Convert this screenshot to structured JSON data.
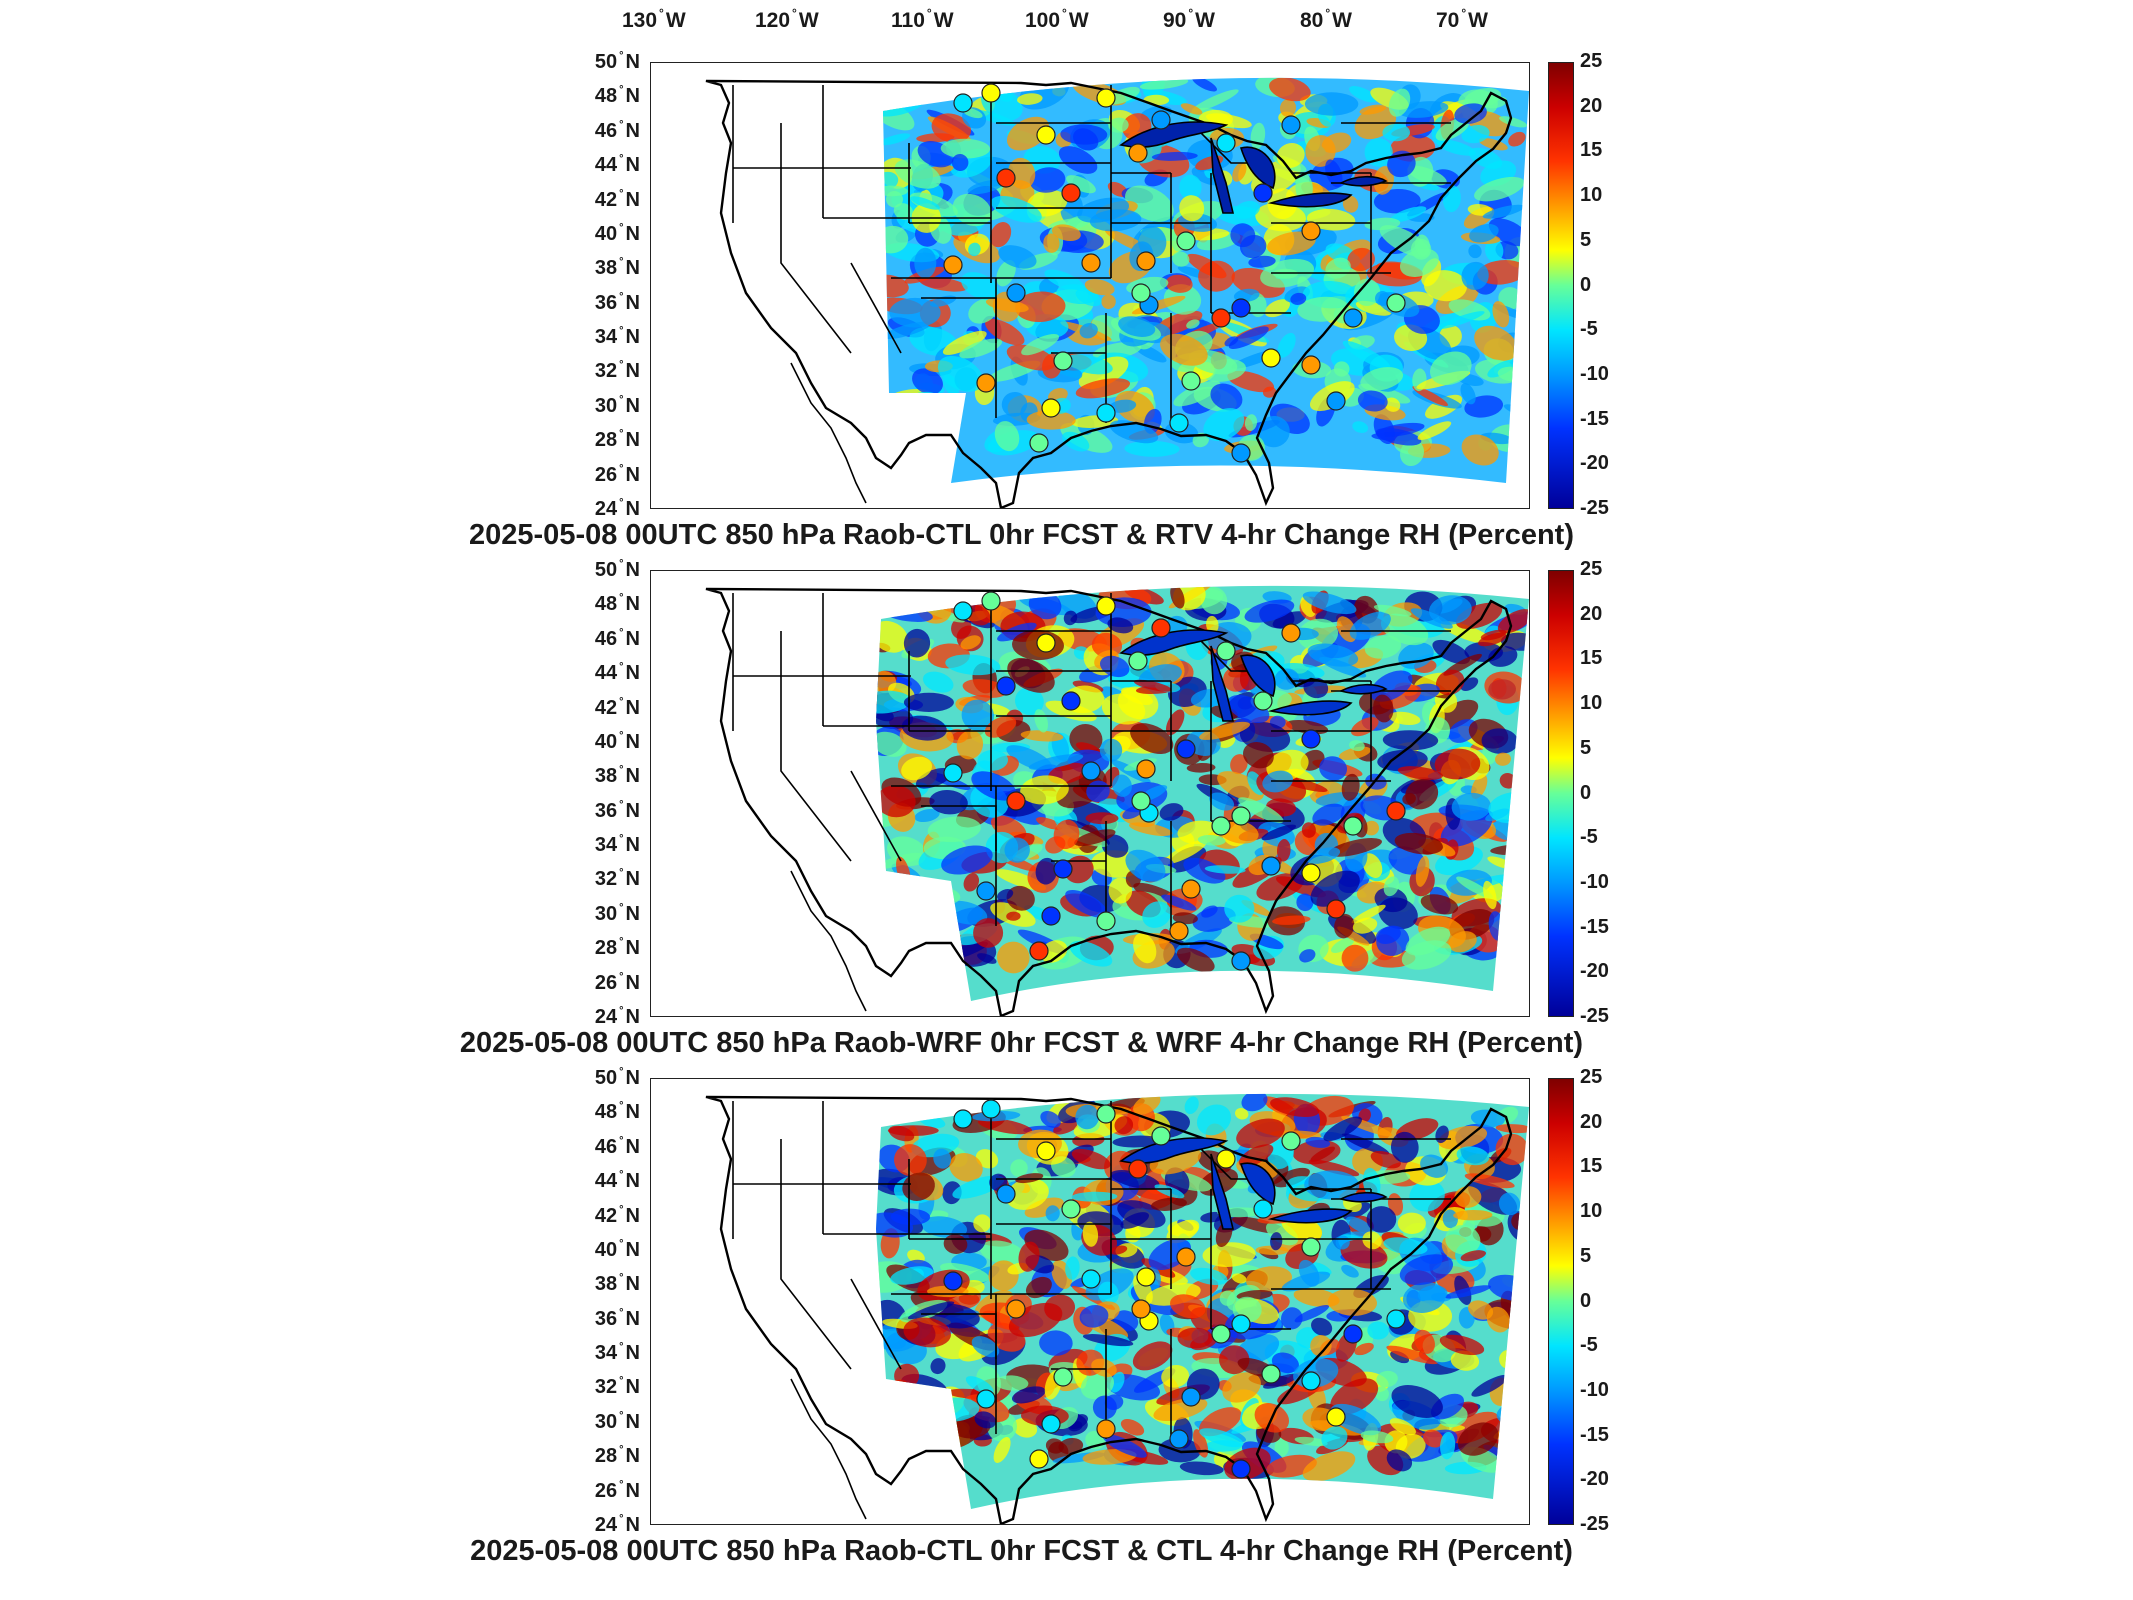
{
  "longitude_labels": [
    "130",
    "120",
    "110",
    "100",
    "90",
    "80",
    "70"
  ],
  "longitude_unit": "W",
  "latitude_labels": [
    "50",
    "48",
    "46",
    "44",
    "42",
    "40",
    "38",
    "36",
    "34",
    "32",
    "30",
    "28",
    "26",
    "24"
  ],
  "latitude_unit": "N",
  "colorbar_ticks": [
    "25",
    "20",
    "15",
    "10",
    "5",
    "0",
    "-5",
    "-10",
    "-15",
    "-20",
    "-25"
  ],
  "colorbar_range": [
    -25,
    25
  ],
  "colormap": [
    "#7f0000",
    "#cc0000",
    "#ff3300",
    "#ff9900",
    "#ffff00",
    "#66ff99",
    "#00e5ff",
    "#0099ff",
    "#0033ff",
    "#000099"
  ],
  "panels": [
    {
      "title": "2025-05-08 00UTC 850 hPa Raob-CTL 0hr FCST & RTV 4-hr Change RH (Percent)"
    },
    {
      "title": "2025-05-08 00UTC 850 hPa Raob-WRF 0hr FCST & WRF 4-hr Change RH (Percent)"
    },
    {
      "title": "2025-05-08 00UTC 850 hPa Raob-CTL 0hr FCST & CTL 4-hr Change RH (Percent)"
    }
  ]
}
